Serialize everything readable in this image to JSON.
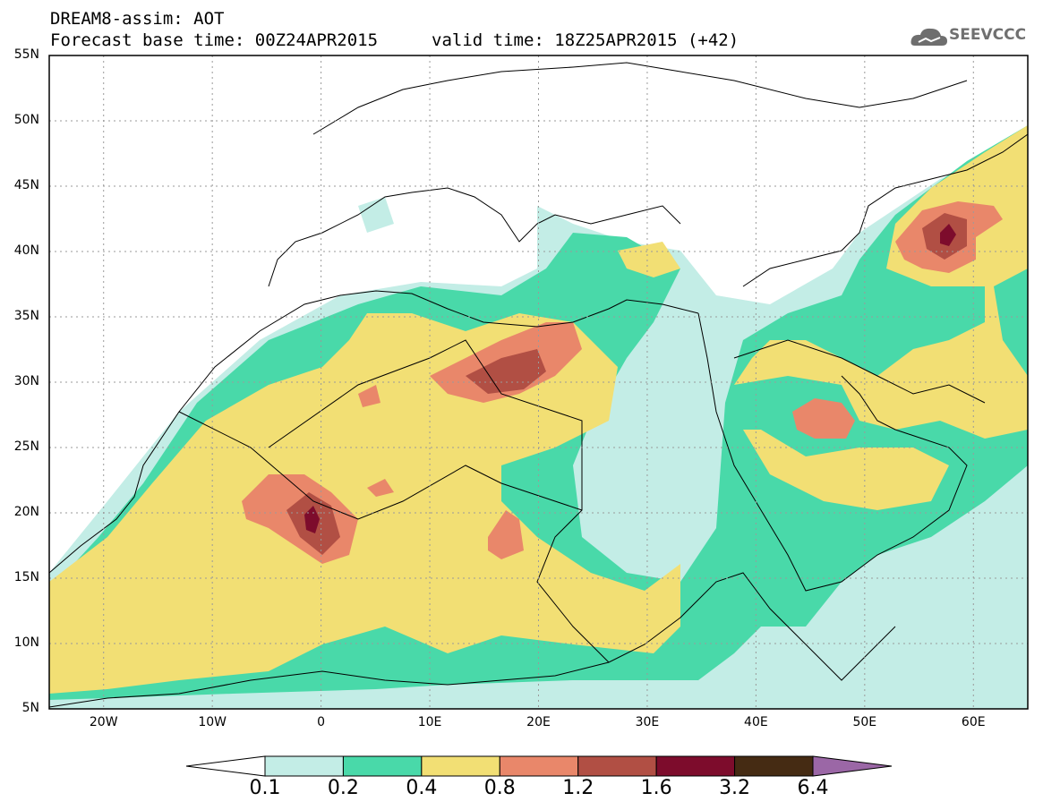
{
  "header": {
    "line1": "DREAM8-assim: AOT",
    "line2": "Forecast base time: 00Z24APR2015",
    "valid": "valid time: 18Z25APR2015 (+42)"
  },
  "logo": {
    "text": "SEEVCCC",
    "icon": "cloud-logo-icon",
    "color": "#6e6e6e"
  },
  "axes": {
    "lat_labels": [
      "55N",
      "50N",
      "45N",
      "40N",
      "35N",
      "30N",
      "25N",
      "20N",
      "15N",
      "10N",
      "5N"
    ],
    "lat_values": [
      55,
      50,
      45,
      40,
      35,
      30,
      25,
      20,
      15,
      10,
      5
    ],
    "lon_labels": [
      "20W",
      "10W",
      "0",
      "10E",
      "20E",
      "30E",
      "40E",
      "50E",
      "60E"
    ],
    "lon_values": [
      -20,
      -10,
      0,
      10,
      20,
      30,
      40,
      50,
      60
    ],
    "lon_range": [
      -25,
      65
    ],
    "lat_range": [
      5,
      55
    ],
    "grid": "dotted"
  },
  "colorbar": {
    "labels": [
      "0.1",
      "0.2",
      "0.4",
      "0.8",
      "1.2",
      "1.6",
      "3.2",
      "6.4"
    ],
    "colors": [
      "#ffffff",
      "#c3ede6",
      "#49d9a9",
      "#f2df74",
      "#e9876a",
      "#b14f44",
      "#7d0c2c",
      "#452b13",
      "#9b67a6"
    ]
  }
}
